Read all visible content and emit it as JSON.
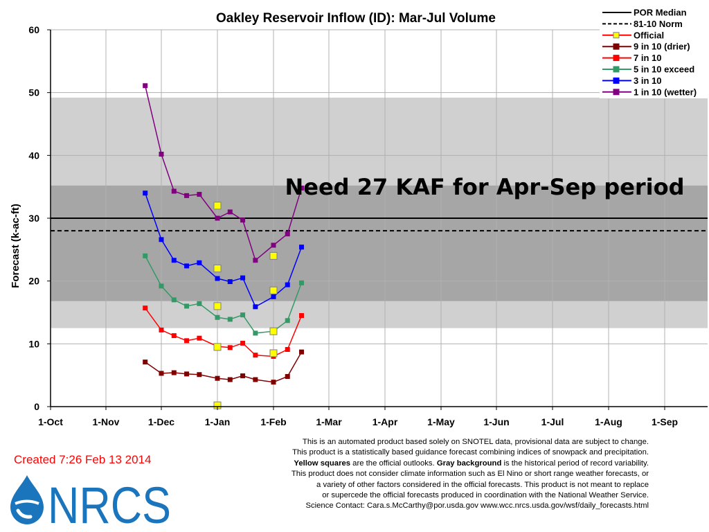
{
  "chart_data": {
    "type": "line",
    "title": "Oakley Reservoir Inflow (ID): Mar-Jul Volume",
    "ylabel": "Forecast (k-ac-ft)",
    "xlabel": "",
    "ylim": [
      0,
      60
    ],
    "yticks": [
      0,
      10,
      20,
      30,
      40,
      50,
      60
    ],
    "xticks": [
      "1-Oct",
      "1-Nov",
      "1-Dec",
      "1-Jan",
      "1-Feb",
      "1-Mar",
      "1-Apr",
      "1-May",
      "1-Jun",
      "1-Jul",
      "1-Aug",
      "1-Sep"
    ],
    "grid": true,
    "legend_position": "top-right",
    "annotation": "Need 27 KAF for Apr-Sep period",
    "background_bands": [
      {
        "from": 12.5,
        "to": 49.2,
        "color": "#d0d0d0"
      },
      {
        "from": 16.8,
        "to": 35.2,
        "color": "#a6a6a6"
      }
    ],
    "reference_lines": [
      {
        "name": "POR Median",
        "value": 30,
        "style": "solid",
        "color": "#000000"
      },
      {
        "name": "81-10 Norm",
        "value": 28,
        "style": "dashed",
        "color": "#000000"
      }
    ],
    "official": {
      "name": "Official",
      "color": "#ffff00",
      "points": [
        {
          "x": "1-Jan",
          "y": 32
        },
        {
          "x": "1-Jan",
          "y": 22
        },
        {
          "x": "1-Jan",
          "y": 16
        },
        {
          "x": "1-Jan",
          "y": 9.5
        },
        {
          "x": "1-Jan",
          "y": 0.2
        },
        {
          "x": "1-Feb",
          "y": 24
        },
        {
          "x": "1-Feb",
          "y": 18.5
        },
        {
          "x": "1-Feb",
          "y": 12
        },
        {
          "x": "1-Feb",
          "y": 8.5
        }
      ]
    },
    "series_dates": [
      "22-Nov",
      "1-Dec",
      "8-Dec",
      "15-Dec",
      "22-Dec",
      "1-Jan",
      "8-Jan",
      "15-Jan",
      "22-Jan",
      "1-Feb",
      "8-Feb",
      "15-Feb"
    ],
    "series": [
      {
        "name": "9 in 10 (drier)",
        "color": "#800000",
        "values": [
          7.1,
          5.3,
          5.4,
          5.2,
          5.1,
          4.5,
          4.3,
          4.9,
          4.3,
          3.9,
          4.8,
          8.7
        ]
      },
      {
        "name": "7 in 10",
        "color": "#ff0000",
        "values": [
          15.7,
          12.2,
          11.3,
          10.5,
          10.9,
          9.6,
          9.4,
          10.1,
          8.2,
          8.0,
          9.1,
          14.5
        ]
      },
      {
        "name": "5 in 10 exceed",
        "color": "#339966",
        "values": [
          24.0,
          19.2,
          17.0,
          16.0,
          16.4,
          14.2,
          13.9,
          14.6,
          11.7,
          12.0,
          13.7,
          19.7
        ]
      },
      {
        "name": "3 in 10",
        "color": "#0000ff",
        "values": [
          34.0,
          26.6,
          23.3,
          22.4,
          22.9,
          20.4,
          19.9,
          20.5,
          15.9,
          17.5,
          19.4,
          25.4
        ]
      },
      {
        "name": "1 in 10 (wetter)",
        "color": "#800080",
        "values": [
          51.1,
          40.2,
          34.3,
          33.6,
          33.8,
          30.0,
          31.0,
          29.7,
          23.3,
          25.7,
          27.5,
          34.8
        ]
      }
    ]
  },
  "created": "Created 7:26 Feb 13 2014",
  "logo_text": "NRCS",
  "disclaimer": {
    "line1": "This is an automated product based solely on SNOTEL  data, provisional data are subject to change.",
    "line2": "This product is a statistically based guidance forecast combining indices of snowpack and precipitation.",
    "line3_bold1": "Yellow squares",
    "line3_mid": " are the official outlooks. ",
    "line3_bold2": "Gray background",
    "line3_end": " is the historical period of record variability.",
    "line4": "This product does not consider climate information such as El Nino or short range weather forecasts, or",
    "line5": "a variety of other factors considered in the official forecasts. This product is not meant to replace",
    "line6": "or supercede the official forecasts produced in coordination with the National Weather Service.",
    "line7": "Science Contact: Cara.s.McCarthy@por.usda.gov www.wcc.nrcs.usda.gov/wsf/daily_forecasts.html"
  }
}
